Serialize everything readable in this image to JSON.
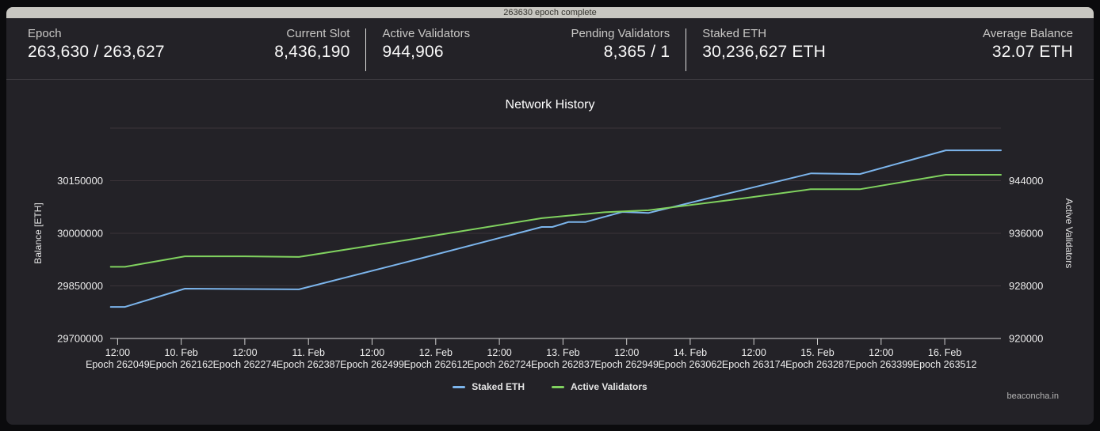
{
  "progress": {
    "text": "263630 epoch complete",
    "bar_color": "#c8c7c1"
  },
  "stats": [
    {
      "label": "Epoch",
      "value": "263,630 / 263,627"
    },
    {
      "label": "Current Slot",
      "value": "8,436,190"
    },
    {
      "label": "Active Validators",
      "value": "944,906"
    },
    {
      "label": "Pending Validators",
      "value": "8,365 / 1"
    },
    {
      "label": "Staked ETH",
      "value": "30,236,627 ETH"
    },
    {
      "label": "Average Balance",
      "value": "32.07 ETH"
    }
  ],
  "watermark": "beaconcha.in",
  "chart_data": {
    "type": "line",
    "title": "Network History",
    "grid_color": "#3b3438",
    "axis_line_color": "#cfcfcf",
    "label_color": "#ededed",
    "x_axis": {
      "unit": "hours since 9. Feb 00:00",
      "min_hours": 10.6,
      "max_hours": 178.6,
      "ticks": [
        {
          "t": 12,
          "time": "12:00",
          "epoch": "Epoch 262049"
        },
        {
          "t": 24,
          "time": "10. Feb",
          "epoch": "Epoch 262162"
        },
        {
          "t": 36,
          "time": "12:00",
          "epoch": "Epoch 262274"
        },
        {
          "t": 48,
          "time": "11. Feb",
          "epoch": "Epoch 262387"
        },
        {
          "t": 60,
          "time": "12:00",
          "epoch": "Epoch 262499"
        },
        {
          "t": 72,
          "time": "12. Feb",
          "epoch": "Epoch 262612"
        },
        {
          "t": 84,
          "time": "12:00",
          "epoch": "Epoch 262724"
        },
        {
          "t": 96,
          "time": "13. Feb",
          "epoch": "Epoch 262837"
        },
        {
          "t": 108,
          "time": "12:00",
          "epoch": "Epoch 262949"
        },
        {
          "t": 120,
          "time": "14. Feb",
          "epoch": "Epoch 263062"
        },
        {
          "t": 132,
          "time": "12:00",
          "epoch": "Epoch 263174"
        },
        {
          "t": 144,
          "time": "15. Feb",
          "epoch": "Epoch 263287"
        },
        {
          "t": 156,
          "time": "12:00",
          "epoch": "Epoch 263399"
        },
        {
          "t": 168,
          "time": "16. Feb",
          "epoch": "Epoch 263512"
        }
      ]
    },
    "y_left": {
      "title": "Balance [ETH]",
      "min": 29700000,
      "max": 30300000,
      "tick_interval": 150000,
      "tick_labels": [
        "29700000",
        "29850000",
        "30000000",
        "30150000"
      ]
    },
    "y_right": {
      "title": "Active Validators",
      "min": 920000,
      "max": 952000,
      "tick_interval": 8000,
      "tick_labels": [
        "920000",
        "928000",
        "936000",
        "944000"
      ]
    },
    "series": [
      {
        "name": "Staked ETH",
        "color": "#7cb5ec",
        "axis": "left",
        "points": [
          [
            10.7,
            29790000
          ],
          [
            13.4,
            29790000
          ],
          [
            24.7,
            29842000
          ],
          [
            36,
            29841000
          ],
          [
            46.2,
            29840000
          ],
          [
            69.1,
            29928000
          ],
          [
            92.0,
            30018000
          ],
          [
            94.0,
            30018000
          ],
          [
            97.0,
            30032000
          ],
          [
            100.2,
            30032000
          ],
          [
            107.2,
            30061000
          ],
          [
            112.1,
            30058000
          ],
          [
            128.9,
            30120000
          ],
          [
            142.8,
            30171000
          ],
          [
            152.0,
            30169000
          ],
          [
            168.2,
            30236627
          ],
          [
            178.6,
            30236627
          ]
        ]
      },
      {
        "name": "Active Validators",
        "color": "#80d25f",
        "axis": "right",
        "points": [
          [
            10.7,
            930900
          ],
          [
            13.4,
            930900
          ],
          [
            24.7,
            932500
          ],
          [
            36,
            932500
          ],
          [
            46.2,
            932400
          ],
          [
            69.1,
            935300
          ],
          [
            92.0,
            938300
          ],
          [
            103.8,
            939200
          ],
          [
            112.1,
            939500
          ],
          [
            128.9,
            941200
          ],
          [
            142.7,
            942700
          ],
          [
            152.0,
            942700
          ],
          [
            168.2,
            944906
          ],
          [
            178.6,
            944906
          ]
        ]
      }
    ],
    "legend_position": "bottom-center"
  }
}
